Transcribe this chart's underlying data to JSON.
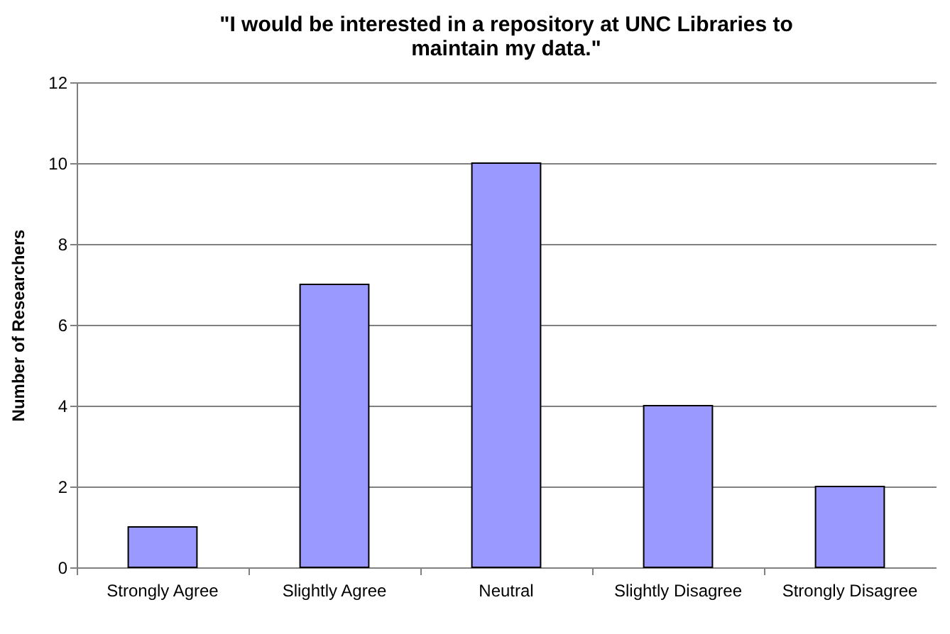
{
  "chart_data": {
    "type": "bar",
    "title": "\"I would be interested in a repository at UNC Libraries to maintain my data.\"",
    "ylabel": "Number of Researchers",
    "categories": [
      "Strongly Agree",
      "Slightly Agree",
      "Neutral",
      "Slightly Disagree",
      "Strongly Disagree"
    ],
    "values": [
      1,
      7,
      10,
      4,
      2
    ],
    "color": "#9999ff",
    "ylim": [
      0,
      12
    ],
    "yticks": [
      0,
      2,
      4,
      6,
      8,
      10,
      12
    ],
    "grid": "y"
  }
}
